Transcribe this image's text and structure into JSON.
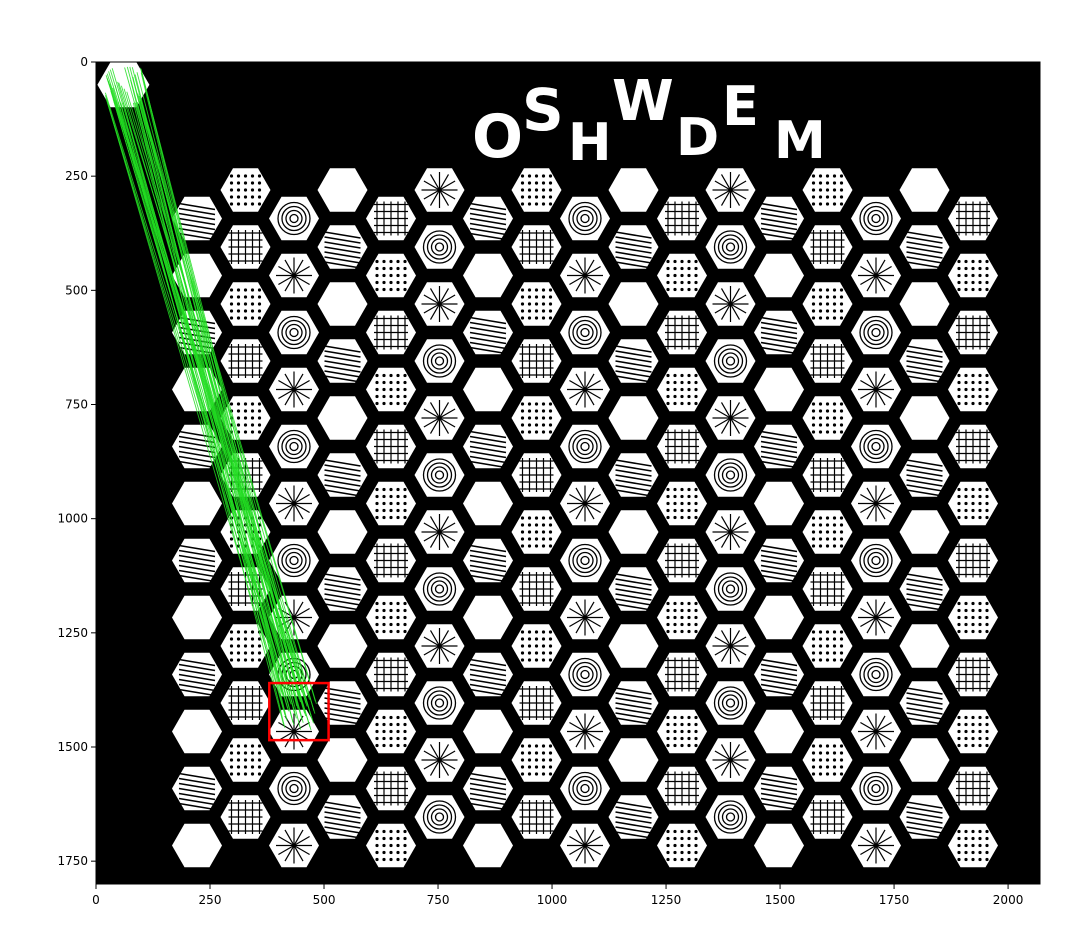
{
  "figure": {
    "title_letters": [
      "O",
      "S",
      "H",
      "W",
      "D",
      "E",
      "M"
    ]
  },
  "axes": {
    "x_ticks": [
      "0",
      "250",
      "500",
      "750",
      "1000",
      "1250",
      "1500",
      "1750",
      "2000"
    ],
    "y_ticks": [
      "0",
      "250",
      "500",
      "750",
      "1000",
      "1250",
      "1500",
      "1750"
    ],
    "xlim": [
      0,
      2070
    ],
    "ylim": [
      1800,
      0
    ]
  },
  "colors": {
    "background": "#000000",
    "tile": "#ffffff",
    "match_line": "#22dd22",
    "detection_box": "#ff0000",
    "axis": "#000000"
  },
  "overlay": {
    "query_tile_center": [
      60,
      50
    ],
    "detection_box": {
      "x": [
        380,
        510
      ],
      "y": [
        1360,
        1485
      ]
    },
    "match_count": 45
  }
}
